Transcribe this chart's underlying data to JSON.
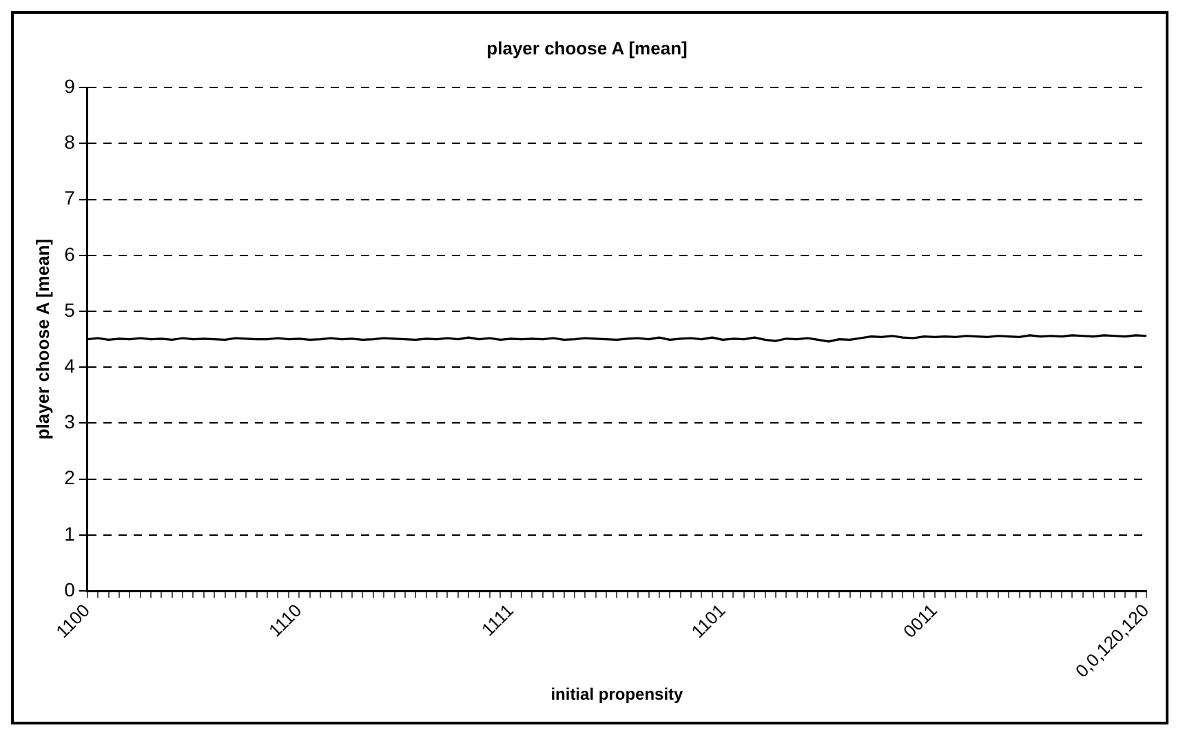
{
  "chart_data": {
    "type": "line",
    "title": "player choose A [mean]",
    "xlabel": "initial propensity",
    "ylabel": "player choose A [mean]",
    "categories": [
      "1100",
      null,
      null,
      null,
      null,
      null,
      null,
      null,
      null,
      null,
      null,
      null,
      null,
      null,
      null,
      null,
      null,
      null,
      null,
      null,
      "1110",
      null,
      null,
      null,
      null,
      null,
      null,
      null,
      null,
      null,
      null,
      null,
      null,
      null,
      null,
      null,
      null,
      null,
      null,
      null,
      "1111",
      null,
      null,
      null,
      null,
      null,
      null,
      null,
      null,
      null,
      null,
      null,
      null,
      null,
      null,
      null,
      null,
      null,
      null,
      null,
      "1101",
      null,
      null,
      null,
      null,
      null,
      null,
      null,
      null,
      null,
      null,
      null,
      null,
      null,
      null,
      null,
      null,
      null,
      null,
      null,
      "0011",
      null,
      null,
      null,
      null,
      null,
      null,
      null,
      null,
      null,
      null,
      null,
      null,
      null,
      null,
      null,
      null,
      null,
      null,
      null,
      "0,0,120,120"
    ],
    "values": [
      4.5,
      4.52,
      4.49,
      4.51,
      4.5,
      4.52,
      4.5,
      4.51,
      4.49,
      4.52,
      4.5,
      4.51,
      4.5,
      4.49,
      4.52,
      4.51,
      4.5,
      4.5,
      4.52,
      4.5,
      4.51,
      4.49,
      4.5,
      4.52,
      4.5,
      4.51,
      4.49,
      4.5,
      4.52,
      4.51,
      4.5,
      4.49,
      4.51,
      4.5,
      4.52,
      4.5,
      4.53,
      4.5,
      4.52,
      4.49,
      4.51,
      4.5,
      4.51,
      4.5,
      4.52,
      4.49,
      4.5,
      4.52,
      4.51,
      4.5,
      4.49,
      4.51,
      4.52,
      4.5,
      4.53,
      4.49,
      4.51,
      4.52,
      4.5,
      4.53,
      4.49,
      4.51,
      4.5,
      4.53,
      4.49,
      4.47,
      4.51,
      4.5,
      4.52,
      4.49,
      4.46,
      4.5,
      4.49,
      4.52,
      4.55,
      4.54,
      4.56,
      4.53,
      4.52,
      4.55,
      4.54,
      4.55,
      4.54,
      4.56,
      4.55,
      4.54,
      4.56,
      4.55,
      4.54,
      4.57,
      4.55,
      4.56,
      4.55,
      4.57,
      4.56,
      4.55,
      4.57,
      4.56,
      4.55,
      4.57,
      4.56
    ],
    "color": "#000000",
    "ylim": [
      0,
      9
    ],
    "yticks": [
      0,
      1,
      2,
      3,
      4,
      5,
      6,
      7,
      8,
      9
    ],
    "grid": "y",
    "line_style": "solid",
    "marker": "none",
    "legend": false
  }
}
